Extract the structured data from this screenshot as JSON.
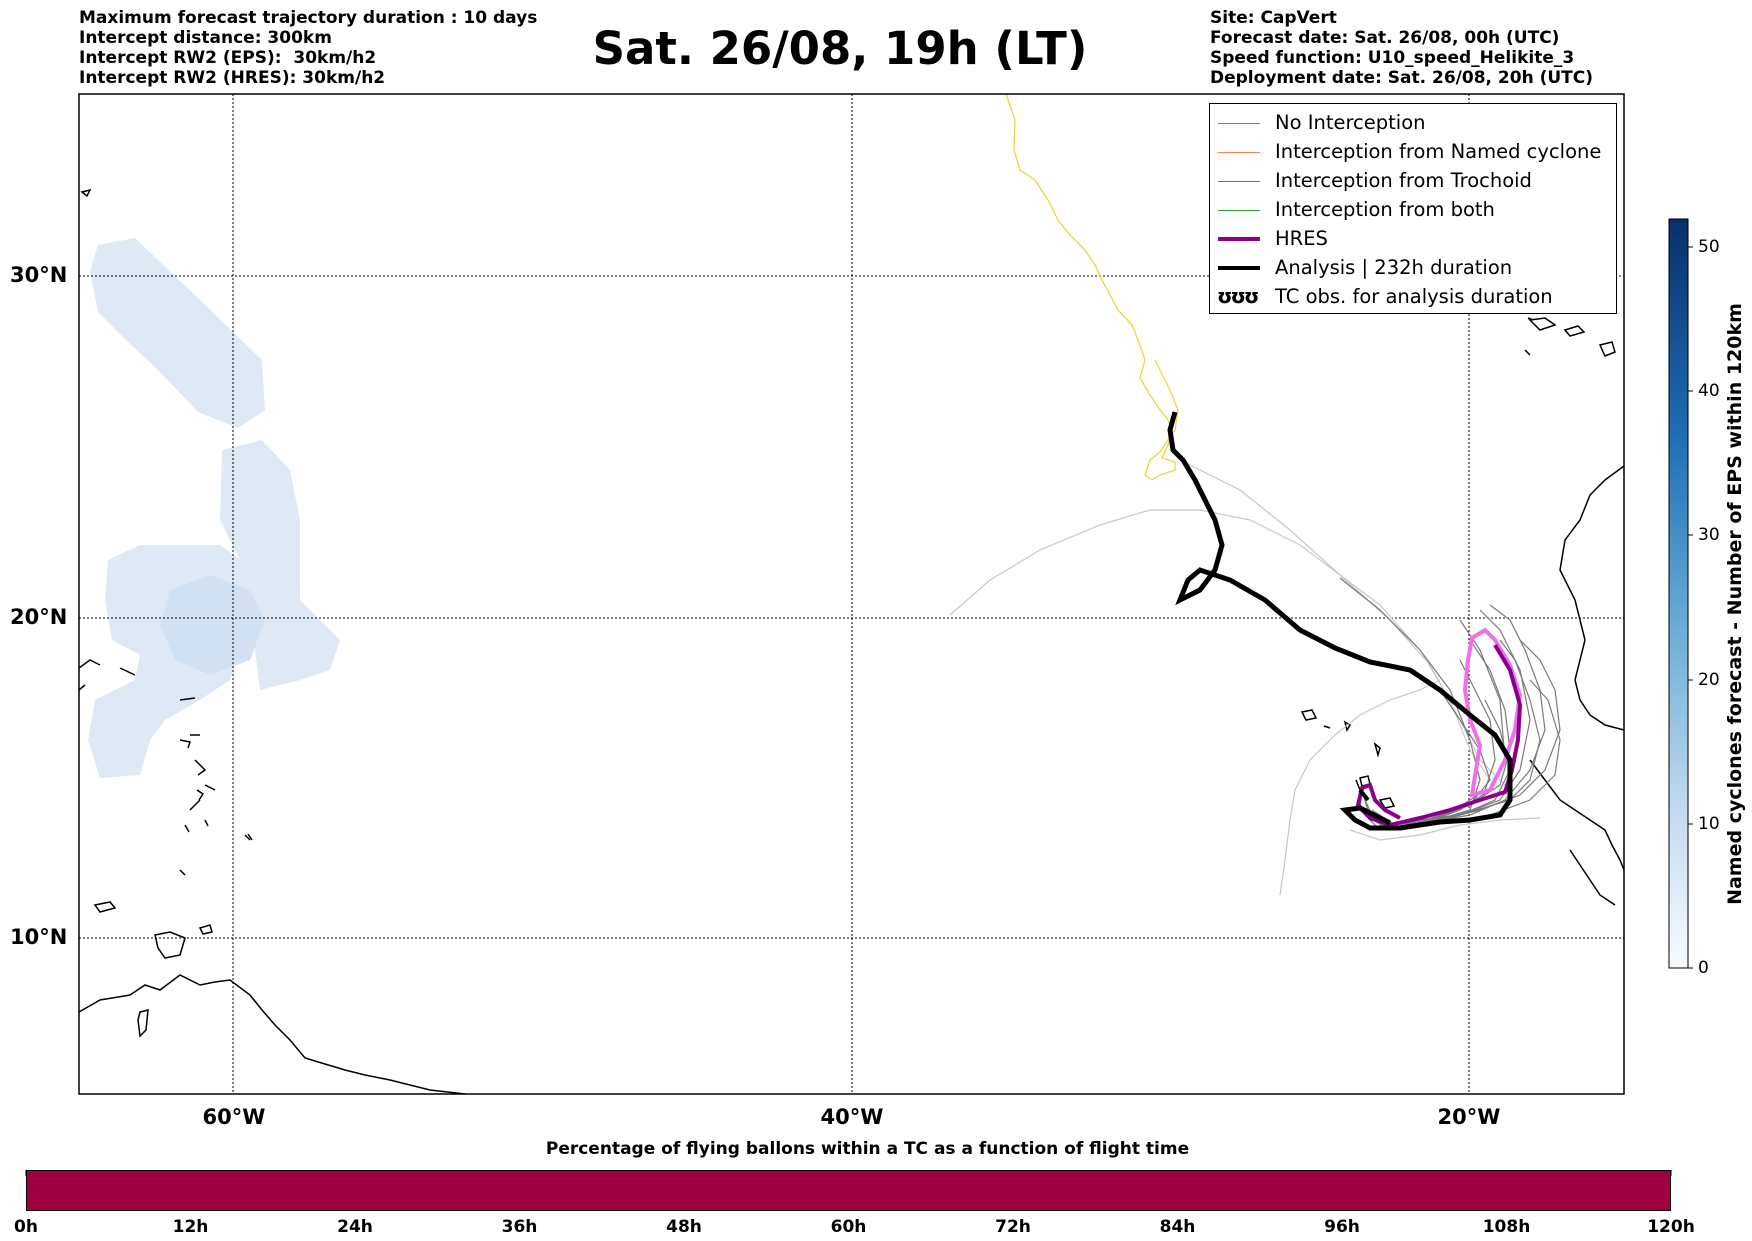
{
  "header": {
    "left": [
      "Maximum forecast trajectory duration : 10 days",
      "Intercept distance: 300km",
      "Intercept RW2 (EPS):  30km/h2",
      "Intercept RW2 (HRES): 30km/h2"
    ],
    "title": "Sat. 26/08, 19h (LT)",
    "right": [
      "Site: CapVert",
      "Forecast date: Sat. 26/08, 00h (UTC)",
      "Speed function: U10_speed_Helikite_3",
      "Deployment date: Sat. 26/08, 20h (UTC)"
    ]
  },
  "map": {
    "lat_labels": [
      "30°N",
      "20°N",
      "10°N"
    ],
    "lon_labels": [
      "60°W",
      "40°W",
      "20°W"
    ],
    "gridlines": "dotted",
    "hres_color": "#8B008B",
    "analysis_color": "#000000"
  },
  "legend": {
    "items": [
      {
        "label": "No Interception",
        "color": "#808080",
        "style": "thin"
      },
      {
        "label": "Interception from Named cyclone",
        "color": "#FF7F50",
        "style": "thin"
      },
      {
        "label": "Interception from Trochoid",
        "color": "#8B8000",
        "style": "thin"
      },
      {
        "label": "Interception from both",
        "color": "#2CA02C",
        "style": "thin"
      },
      {
        "label": "HRES",
        "color": "#8B008B",
        "style": "thick"
      },
      {
        "label": "Analysis | 232h duration",
        "color": "#000000",
        "style": "thick"
      },
      {
        "label": "TC obs. for analysis duration",
        "color": "#000000",
        "style": "symbol",
        "symbol": "ʊʊʊ"
      }
    ]
  },
  "colorbar": {
    "title": "Named cyclones forecast - Number of EPS within 120km",
    "ticks": [
      "50",
      "40",
      "30",
      "20",
      "10",
      "0"
    ],
    "range": [
      0,
      52
    ],
    "colors": [
      "#f7fbff",
      "#08306b"
    ]
  },
  "timebar": {
    "title": "Percentage of flying ballons within a TC as a function of flight time",
    "ticks": [
      "0h",
      "12h",
      "24h",
      "36h",
      "48h",
      "60h",
      "72h",
      "84h",
      "96h",
      "108h",
      "120h"
    ],
    "fill_color": "#9e0040"
  }
}
